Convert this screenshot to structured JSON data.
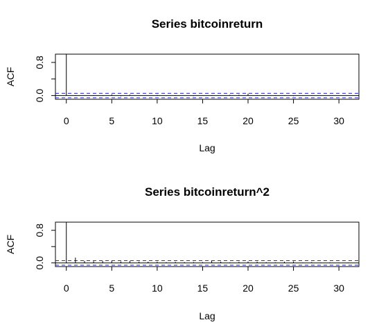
{
  "chart_data": [
    {
      "type": "bar",
      "title": "Series  bitcoinreturn",
      "xlabel": "Lag",
      "ylabel": "ACF",
      "xlim": [
        -1.2,
        32.2
      ],
      "ylim": [
        -0.09,
        1.0
      ],
      "x_ticks": [
        0,
        5,
        10,
        15,
        20,
        25,
        30
      ],
      "y_ticks": [
        0.0,
        0.4,
        0.8
      ],
      "y_tick_labels": [
        "0.0",
        "",
        "0.8"
      ],
      "conf_limit": 0.055,
      "lags": [
        0,
        1,
        2,
        3,
        4,
        5,
        6,
        7,
        8,
        9,
        10,
        11,
        12,
        13,
        14,
        15,
        16,
        17,
        18,
        19,
        20,
        21,
        22,
        23,
        24,
        25,
        26,
        27,
        28,
        29,
        30,
        31,
        32
      ],
      "acf": [
        1.0,
        0.01,
        -0.005,
        0.012,
        -0.01,
        0.03,
        -0.015,
        0.022,
        -0.008,
        0.005,
        0.015,
        -0.01,
        0.008,
        0.004,
        -0.012,
        0.006,
        0.01,
        -0.004,
        0.018,
        0.02,
        0.045,
        0.012,
        -0.006,
        0.008,
        0.01,
        -0.012,
        0.005,
        0.008,
        -0.006,
        0.01,
        0.004,
        0.006,
        -0.004
      ]
    },
    {
      "type": "bar",
      "title": "Series  bitcoinreturn^2",
      "xlabel": "Lag",
      "ylabel": "ACF",
      "xlim": [
        -1.2,
        32.2
      ],
      "ylim": [
        -0.09,
        1.0
      ],
      "x_ticks": [
        0,
        5,
        10,
        15,
        20,
        25,
        30
      ],
      "y_ticks": [
        0.0,
        0.4,
        0.8
      ],
      "y_tick_labels": [
        "0.0",
        "",
        "0.8"
      ],
      "conf_limit": 0.055,
      "lags": [
        0,
        1,
        2,
        3,
        4,
        5,
        6,
        7,
        8,
        9,
        10,
        11,
        12,
        13,
        14,
        15,
        16,
        17,
        18,
        19,
        20,
        21,
        22,
        23,
        24,
        25,
        26,
        27,
        28,
        29,
        30,
        31,
        32
      ],
      "acf": [
        1.0,
        0.13,
        0.05,
        0.04,
        0.045,
        0.05,
        0.035,
        0.05,
        0.03,
        0.03,
        0.03,
        0.02,
        0.025,
        0.02,
        0.02,
        0.02,
        0.05,
        0.03,
        0.015,
        0.025,
        0.035,
        0.03,
        0.02,
        0.015,
        0.03,
        0.035,
        0.01,
        0.02,
        0.01,
        0.015,
        0.01,
        0.01,
        0.005
      ]
    }
  ]
}
